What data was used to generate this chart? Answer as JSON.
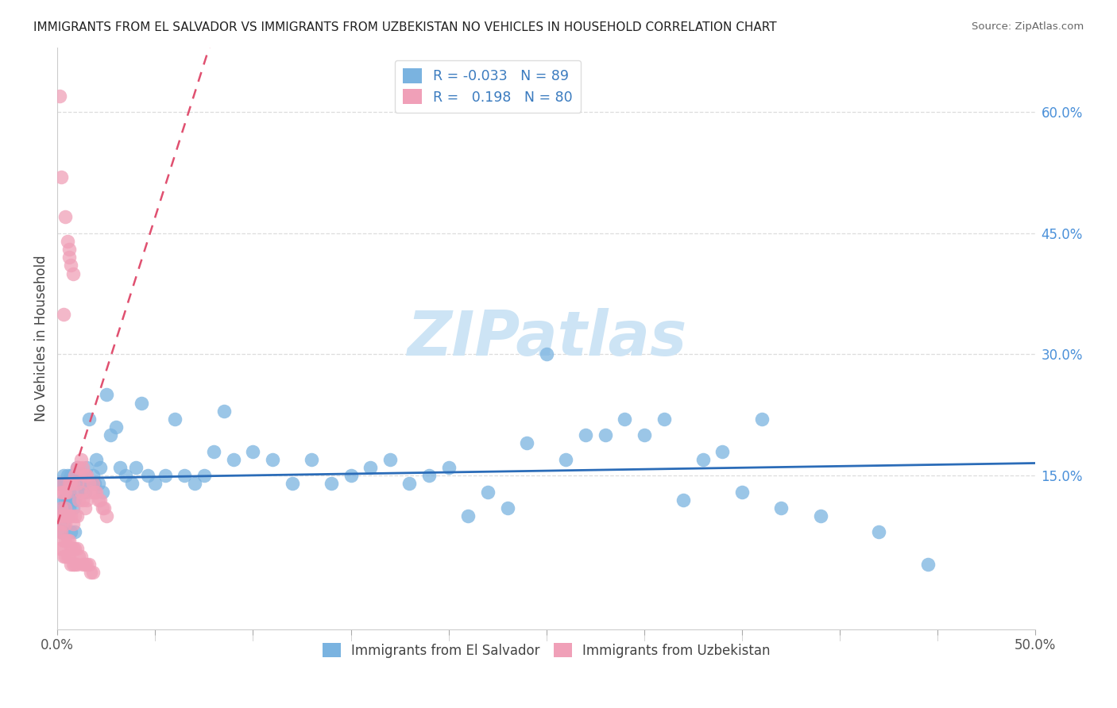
{
  "title": "IMMIGRANTS FROM EL SALVADOR VS IMMIGRANTS FROM UZBEKISTAN NO VEHICLES IN HOUSEHOLD CORRELATION CHART",
  "source": "Source: ZipAtlas.com",
  "ylabel": "No Vehicles in Household",
  "xlim": [
    0.0,
    0.5
  ],
  "ylim": [
    -0.04,
    0.68
  ],
  "right_ytick_vals": [
    0.15,
    0.3,
    0.45,
    0.6
  ],
  "right_ytick_labels": [
    "15.0%",
    "30.0%",
    "45.0%",
    "60.0%"
  ],
  "legend_labels_bottom": [
    "Immigrants from El Salvador",
    "Immigrants from Uzbekistan"
  ],
  "el_salvador_color": "#7ab3e0",
  "uzbekistan_color": "#f0a0b8",
  "el_salvador_line_color": "#2b6cb8",
  "uzbekistan_line_color": "#e05070",
  "watermark_text": "ZIPatlas",
  "watermark_color": "#cde4f5",
  "el_salvador_R": -0.033,
  "uzbekistan_R": 0.198,
  "el_salvador_N": 89,
  "uzbekistan_N": 80,
  "uzbekistan_x": [
    0.001,
    0.001,
    0.001,
    0.002,
    0.002,
    0.002,
    0.002,
    0.003,
    0.003,
    0.003,
    0.004,
    0.004,
    0.004,
    0.004,
    0.005,
    0.005,
    0.005,
    0.006,
    0.006,
    0.006,
    0.006,
    0.007,
    0.007,
    0.007,
    0.008,
    0.008,
    0.008,
    0.009,
    0.009,
    0.01,
    0.01,
    0.01,
    0.011,
    0.011,
    0.012,
    0.012,
    0.013,
    0.013,
    0.014,
    0.014,
    0.015,
    0.015,
    0.016,
    0.017,
    0.018,
    0.019,
    0.02,
    0.021,
    0.022,
    0.023,
    0.024,
    0.025,
    0.001,
    0.001,
    0.002,
    0.002,
    0.003,
    0.003,
    0.004,
    0.004,
    0.005,
    0.005,
    0.006,
    0.006,
    0.007,
    0.007,
    0.008,
    0.008,
    0.009,
    0.009,
    0.01,
    0.01,
    0.011,
    0.012,
    0.013,
    0.014,
    0.015,
    0.016,
    0.017,
    0.018
  ],
  "uzbekistan_y": [
    0.62,
    0.14,
    0.1,
    0.52,
    0.13,
    0.11,
    0.09,
    0.35,
    0.13,
    0.1,
    0.47,
    0.13,
    0.11,
    0.09,
    0.44,
    0.13,
    0.1,
    0.43,
    0.42,
    0.14,
    0.1,
    0.41,
    0.14,
    0.1,
    0.4,
    0.14,
    0.09,
    0.15,
    0.1,
    0.16,
    0.14,
    0.1,
    0.16,
    0.12,
    0.17,
    0.13,
    0.16,
    0.12,
    0.15,
    0.11,
    0.15,
    0.12,
    0.14,
    0.13,
    0.14,
    0.13,
    0.13,
    0.12,
    0.12,
    0.11,
    0.11,
    0.1,
    0.08,
    0.06,
    0.08,
    0.06,
    0.07,
    0.05,
    0.07,
    0.05,
    0.07,
    0.05,
    0.07,
    0.05,
    0.06,
    0.04,
    0.06,
    0.04,
    0.06,
    0.04,
    0.06,
    0.04,
    0.05,
    0.05,
    0.04,
    0.04,
    0.04,
    0.04,
    0.03,
    0.03
  ],
  "el_salvador_x": [
    0.001,
    0.002,
    0.002,
    0.003,
    0.003,
    0.004,
    0.004,
    0.005,
    0.005,
    0.006,
    0.006,
    0.007,
    0.007,
    0.008,
    0.008,
    0.009,
    0.009,
    0.01,
    0.01,
    0.011,
    0.012,
    0.013,
    0.014,
    0.015,
    0.016,
    0.017,
    0.018,
    0.019,
    0.02,
    0.021,
    0.022,
    0.023,
    0.025,
    0.027,
    0.03,
    0.032,
    0.035,
    0.038,
    0.04,
    0.043,
    0.046,
    0.05,
    0.055,
    0.06,
    0.065,
    0.07,
    0.075,
    0.08,
    0.085,
    0.09,
    0.1,
    0.11,
    0.12,
    0.13,
    0.14,
    0.15,
    0.16,
    0.17,
    0.18,
    0.19,
    0.2,
    0.21,
    0.22,
    0.23,
    0.24,
    0.25,
    0.26,
    0.27,
    0.28,
    0.29,
    0.3,
    0.31,
    0.32,
    0.33,
    0.34,
    0.35,
    0.36,
    0.37,
    0.39,
    0.42,
    0.445,
    0.002,
    0.003,
    0.004,
    0.005,
    0.006,
    0.007,
    0.008,
    0.009
  ],
  "el_salvador_y": [
    0.14,
    0.14,
    0.11,
    0.15,
    0.12,
    0.14,
    0.11,
    0.15,
    0.12,
    0.14,
    0.11,
    0.15,
    0.12,
    0.14,
    0.11,
    0.15,
    0.12,
    0.16,
    0.13,
    0.14,
    0.15,
    0.14,
    0.13,
    0.16,
    0.22,
    0.14,
    0.15,
    0.14,
    0.17,
    0.14,
    0.16,
    0.13,
    0.25,
    0.2,
    0.21,
    0.16,
    0.15,
    0.14,
    0.16,
    0.24,
    0.15,
    0.14,
    0.15,
    0.22,
    0.15,
    0.14,
    0.15,
    0.18,
    0.23,
    0.17,
    0.18,
    0.17,
    0.14,
    0.17,
    0.14,
    0.15,
    0.16,
    0.17,
    0.14,
    0.15,
    0.16,
    0.1,
    0.13,
    0.11,
    0.19,
    0.3,
    0.17,
    0.2,
    0.2,
    0.22,
    0.2,
    0.22,
    0.12,
    0.17,
    0.18,
    0.13,
    0.22,
    0.11,
    0.1,
    0.08,
    0.04,
    0.08,
    0.09,
    0.12,
    0.1,
    0.13,
    0.08,
    0.12,
    0.08
  ]
}
